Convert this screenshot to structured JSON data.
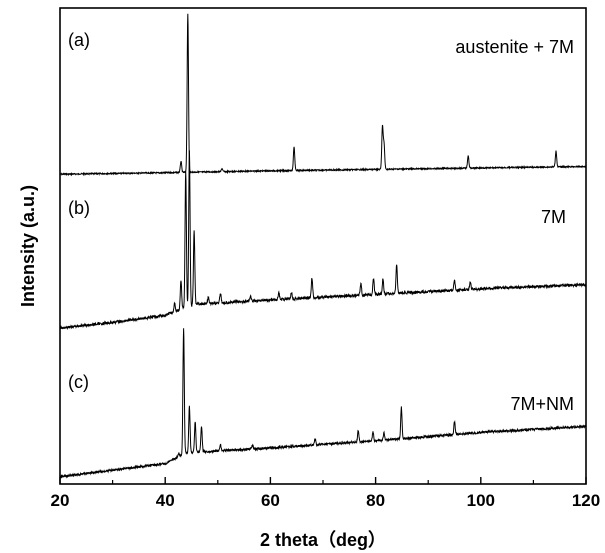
{
  "chart_data": {
    "type": "line",
    "xlabel": "2 theta（deg）",
    "ylabel": "Intensity (a.u.)",
    "xlim": [
      20,
      120
    ],
    "xticks": [
      "20",
      "40",
      "60",
      "80",
      "100",
      "120"
    ],
    "grid": false,
    "series": [
      {
        "panel": "(a)",
        "name": "austenite + 7M",
        "baseline": [
          [
            20,
            0.05
          ],
          [
            40,
            0.065
          ],
          [
            44,
            0.07
          ],
          [
            60,
            0.085
          ],
          [
            80,
            0.1
          ],
          [
            100,
            0.115
          ],
          [
            120,
            0.13
          ]
        ],
        "peaks": [
          [
            43.0,
            0.07
          ],
          [
            44.3,
            1.0
          ],
          [
            50.8,
            0.02
          ],
          [
            64.5,
            0.15
          ],
          [
            81.3,
            0.27
          ],
          [
            81.6,
            0.16
          ],
          [
            97.6,
            0.08
          ],
          [
            114.3,
            0.1
          ]
        ]
      },
      {
        "panel": "(b)",
        "name": "7M",
        "baseline": [
          [
            20,
            0.05
          ],
          [
            30,
            0.09
          ],
          [
            40,
            0.14
          ],
          [
            42,
            0.17
          ],
          [
            46,
            0.22
          ],
          [
            60,
            0.25
          ],
          [
            80,
            0.29
          ],
          [
            100,
            0.33
          ],
          [
            120,
            0.36
          ]
        ],
        "peaks": [
          [
            41.8,
            0.05
          ],
          [
            43.0,
            0.18
          ],
          [
            43.9,
            0.83
          ],
          [
            44.6,
            0.94
          ],
          [
            45.5,
            0.45
          ],
          [
            48.2,
            0.04
          ],
          [
            50.5,
            0.06
          ],
          [
            56.2,
            0.03
          ],
          [
            61.6,
            0.04
          ],
          [
            64.0,
            0.04
          ],
          [
            67.9,
            0.12
          ],
          [
            77.2,
            0.07
          ],
          [
            79.6,
            0.1
          ],
          [
            81.4,
            0.09
          ],
          [
            84.0,
            0.17
          ],
          [
            95.0,
            0.06
          ],
          [
            98.0,
            0.04
          ]
        ]
      },
      {
        "panel": "(c)",
        "name": "7M+NM",
        "baseline": [
          [
            20,
            0.03
          ],
          [
            40,
            0.085
          ],
          [
            44,
            0.13
          ],
          [
            60,
            0.15
          ],
          [
            80,
            0.18
          ],
          [
            100,
            0.215
          ],
          [
            120,
            0.24
          ]
        ],
        "peaks": [
          [
            42.6,
            0.03
          ],
          [
            43.5,
            1.0
          ],
          [
            44.6,
            0.37
          ],
          [
            45.7,
            0.24
          ],
          [
            46.9,
            0.21
          ],
          [
            50.5,
            0.05
          ],
          [
            56.6,
            0.03
          ],
          [
            68.5,
            0.05
          ],
          [
            76.7,
            0.09
          ],
          [
            79.5,
            0.07
          ],
          [
            81.6,
            0.06
          ],
          [
            84.9,
            0.25
          ],
          [
            95.0,
            0.1
          ]
        ]
      }
    ]
  }
}
